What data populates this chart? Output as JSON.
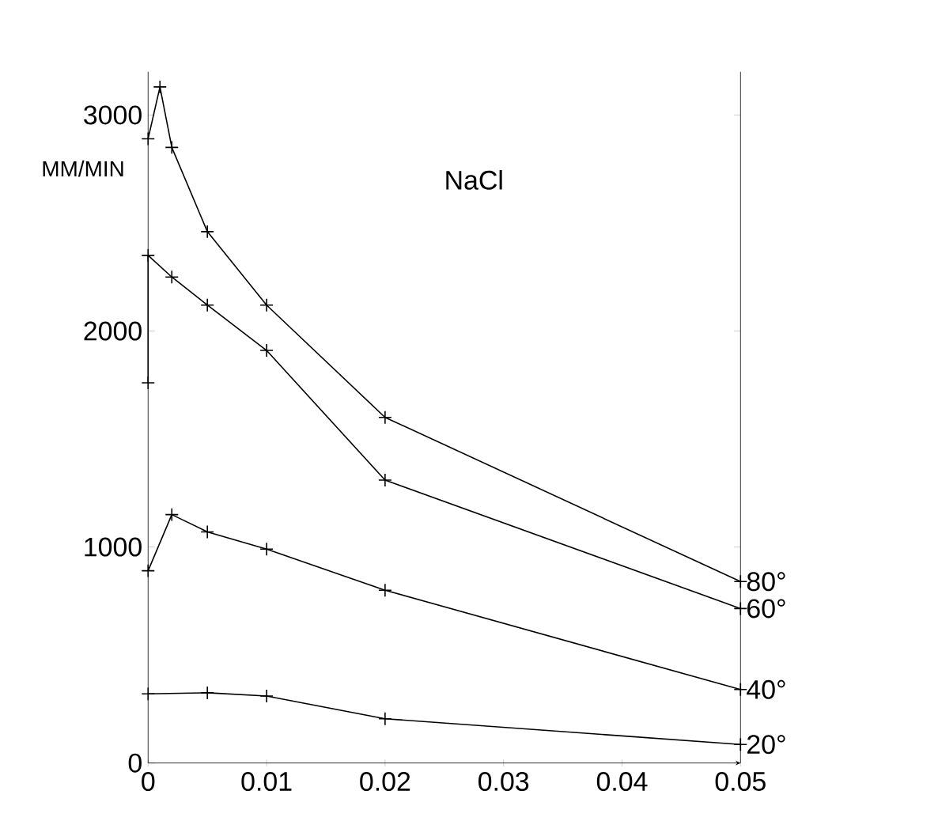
{
  "chart_data": {
    "type": "line",
    "title": "NaCl",
    "ylabel": "MM/MIN",
    "xlim": [
      0,
      0.05
    ],
    "ylim": [
      0,
      3200
    ],
    "xticks": [
      0,
      0.01,
      0.02,
      0.03,
      0.04,
      0.05
    ],
    "yticks": [
      0,
      1000,
      2000,
      3000
    ],
    "marker": "cross",
    "line_style": "solid",
    "grid": false,
    "series": [
      {
        "name": "80°",
        "color": "#000000",
        "x": [
          0,
          0.001,
          0.002,
          0.005,
          0.01,
          0.02,
          0.05
        ],
        "values": [
          2890,
          3130,
          2850,
          2460,
          2120,
          1600,
          840
        ]
      },
      {
        "name": "60°",
        "color": "#000000",
        "x": [
          0,
          0,
          0.002,
          0.005,
          0.01,
          0.02,
          0.05
        ],
        "values": [
          1760,
          2350,
          2250,
          2120,
          1910,
          1310,
          715
        ]
      },
      {
        "name": "40°",
        "color": "#000000",
        "x": [
          0,
          0.002,
          0.005,
          0.01,
          0.02,
          0.05
        ],
        "values": [
          890,
          1150,
          1070,
          990,
          800,
          340
        ]
      },
      {
        "name": "20°",
        "color": "#000000",
        "x": [
          0,
          0.005,
          0.01,
          0.02,
          0.05
        ],
        "values": [
          320,
          325,
          310,
          205,
          86
        ]
      }
    ]
  }
}
